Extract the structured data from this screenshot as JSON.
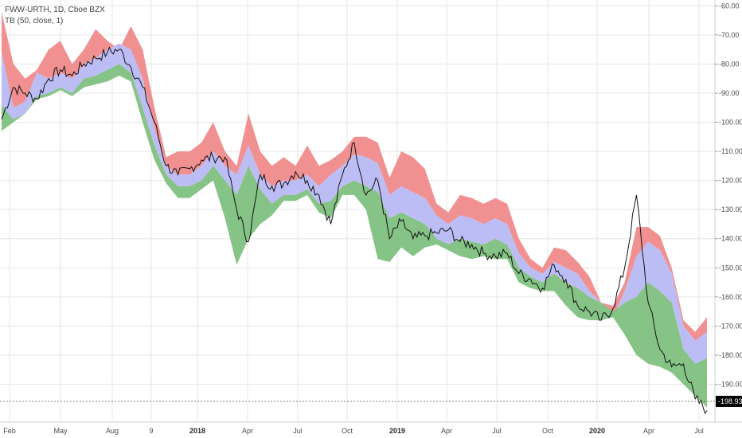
{
  "header": {
    "symbol": "FWW-URTH, 1D, Cboe BZX",
    "indicator": "TB (50, close, 1)"
  },
  "price_scale": {
    "ticks": [
      "-60.00",
      "-70.00",
      "-80.00",
      "-90.00",
      "-100.00",
      "-110.00",
      "-120.00",
      "-130.00",
      "-140.00",
      "-150.00",
      "-160.00",
      "-170.00",
      "-180.00",
      "-190.00"
    ],
    "last_price": "-198.93"
  },
  "time_scale": {
    "labels": [
      {
        "text": "Feb",
        "bold": false
      },
      {
        "text": "May",
        "bold": false
      },
      {
        "text": "Aug",
        "bold": false
      },
      {
        "text": "9",
        "bold": false
      },
      {
        "text": "2018",
        "bold": true
      },
      {
        "text": "Apr",
        "bold": false
      },
      {
        "text": "Jul",
        "bold": false
      },
      {
        "text": "Oct",
        "bold": false
      },
      {
        "text": "2019",
        "bold": true
      },
      {
        "text": "Apr",
        "bold": false
      },
      {
        "text": "Jul",
        "bold": false
      },
      {
        "text": "Oct",
        "bold": false
      },
      {
        "text": "2020",
        "bold": true
      },
      {
        "text": "Apr",
        "bold": false
      },
      {
        "text": "Jul",
        "bold": false
      }
    ]
  },
  "colors": {
    "upper_band": "#f08a8a",
    "middle_band": "#b9b9f5",
    "lower_band": "#7fc07f",
    "price_line": "#111111",
    "grid": "#e6e6e6",
    "last_price_bg": "#000000"
  },
  "chart_data": {
    "type": "area",
    "series": [
      {
        "name": "upper",
        "values": [
          -62,
          -80,
          -85,
          -82,
          -75,
          -72,
          -80,
          -75,
          -68,
          -72,
          -75,
          -67,
          -75,
          -95,
          -112,
          -110,
          -110,
          -107,
          -100,
          -110,
          -115,
          -97,
          -110,
          -115,
          -112,
          -115,
          -108,
          -115,
          -113,
          -110,
          -105,
          -105,
          -107,
          -119,
          -110,
          -112,
          -116,
          -128,
          -131,
          -125,
          -126,
          -128,
          -126,
          -128,
          -140,
          -147,
          -150,
          -143,
          -144,
          -148,
          -153,
          -162,
          -163,
          -155,
          -136,
          -136,
          -139,
          -150,
          -168,
          -172,
          -167
        ]
      },
      {
        "name": "mid_top",
        "values": [
          -76,
          -95,
          -93,
          -83,
          -85,
          -83,
          -85,
          -80,
          -78,
          -75,
          -73,
          -75,
          -85,
          -102,
          -115,
          -118,
          -118,
          -115,
          -110,
          -115,
          -118,
          -108,
          -118,
          -122,
          -120,
          -120,
          -118,
          -122,
          -118,
          -115,
          -111,
          -112,
          -114,
          -125,
          -122,
          -124,
          -126,
          -132,
          -135,
          -132,
          -133,
          -135,
          -133,
          -135,
          -145,
          -150,
          -152,
          -148,
          -150,
          -152,
          -158,
          -162,
          -167,
          -158,
          -146,
          -141,
          -144,
          -152,
          -170,
          -175,
          -172
        ]
      },
      {
        "name": "mid_bottom",
        "values": [
          -94,
          -99,
          -97,
          -91,
          -90,
          -88,
          -90,
          -85,
          -84,
          -82,
          -80,
          -83,
          -95,
          -108,
          -118,
          -122,
          -122,
          -120,
          -115,
          -120,
          -125,
          -115,
          -123,
          -128,
          -125,
          -125,
          -123,
          -128,
          -127,
          -122,
          -120,
          -122,
          -124,
          -133,
          -131,
          -133,
          -135,
          -140,
          -142,
          -140,
          -141,
          -142,
          -140,
          -142,
          -150,
          -153,
          -155,
          -152,
          -155,
          -157,
          -160,
          -162,
          -165,
          -162,
          -160,
          -155,
          -158,
          -162,
          -178,
          -183,
          -181
        ]
      },
      {
        "name": "lower",
        "values": [
          -103,
          -100,
          -97,
          -92,
          -91,
          -89,
          -91,
          -88,
          -87,
          -86,
          -84,
          -86,
          -100,
          -113,
          -121,
          -126,
          -126,
          -123,
          -120,
          -133,
          -149,
          -140,
          -135,
          -132,
          -127,
          -127,
          -125,
          -131,
          -133,
          -125,
          -125,
          -130,
          -147,
          -148,
          -143,
          -146,
          -143,
          -142,
          -144,
          -146,
          -147,
          -146,
          -147,
          -147,
          -155,
          -157,
          -158,
          -158,
          -163,
          -167,
          -168,
          -168,
          -167,
          -173,
          -180,
          -183,
          -184,
          -186,
          -190,
          -194,
          -198
        ]
      },
      {
        "name": "price",
        "values": [
          -99,
          -88,
          -90,
          -92,
          -85,
          -82,
          -84,
          -80,
          -78,
          -76,
          -75,
          -81,
          -88,
          -100,
          -115,
          -118,
          -116,
          -113,
          -112,
          -112,
          -130,
          -141,
          -118,
          -122,
          -121,
          -117,
          -120,
          -125,
          -135,
          -118,
          -107,
          -125,
          -120,
          -140,
          -134,
          -140,
          -139,
          -138,
          -137,
          -141,
          -142,
          -145,
          -146,
          -145,
          -152,
          -154,
          -157,
          -149,
          -154,
          -163,
          -165,
          -168,
          -164,
          -150,
          -125,
          -162,
          -178,
          -184,
          -183,
          -195,
          -199
        ]
      }
    ],
    "ylim": [
      -203,
      -58
    ],
    "last_value": -198.93
  }
}
